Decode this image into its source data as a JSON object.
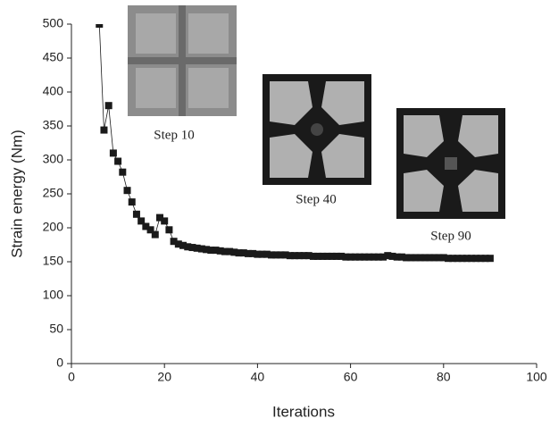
{
  "chart_data": {
    "type": "line",
    "xlabel": "Iterations",
    "ylabel": "Strain energy (Nm)",
    "x": [
      6,
      7,
      8,
      9,
      10,
      11,
      12,
      13,
      14,
      15,
      16,
      17,
      18,
      19,
      20,
      21,
      22,
      23,
      24,
      25,
      26,
      27,
      28,
      29,
      30,
      31,
      32,
      33,
      34,
      35,
      36,
      37,
      38,
      39,
      40,
      41,
      42,
      43,
      44,
      45,
      46,
      47,
      48,
      49,
      50,
      51,
      52,
      53,
      54,
      55,
      56,
      57,
      58,
      59,
      60,
      61,
      62,
      63,
      64,
      65,
      66,
      67,
      68,
      69,
      70,
      71,
      72,
      73,
      74,
      75,
      76,
      77,
      78,
      79,
      80,
      81,
      82,
      83,
      84,
      85,
      86,
      87,
      88,
      89,
      90
    ],
    "values": [
      500,
      344,
      380,
      310,
      298,
      282,
      255,
      238,
      220,
      210,
      202,
      197,
      190,
      215,
      210,
      197,
      180,
      176,
      174,
      172,
      171,
      170,
      169,
      168,
      167,
      167,
      166,
      165,
      165,
      164,
      163,
      163,
      162,
      162,
      161,
      161,
      161,
      160,
      160,
      160,
      160,
      159,
      159,
      159,
      159,
      159,
      158,
      158,
      158,
      158,
      158,
      158,
      158,
      157,
      157,
      157,
      157,
      157,
      157,
      157,
      157,
      157,
      159,
      158,
      157,
      157,
      156,
      156,
      156,
      156,
      156,
      156,
      156,
      156,
      156,
      155,
      155,
      155,
      155,
      155,
      155,
      155,
      155,
      155,
      155
    ],
    "color": "#1a1a1a",
    "xlim": [
      0,
      100
    ],
    "xticks": [
      0,
      20,
      40,
      60,
      80,
      100
    ],
    "ylim": [
      0,
      500
    ],
    "yticks": [
      0,
      50,
      100,
      150,
      200,
      250,
      300,
      350,
      400,
      450,
      500
    ],
    "annotations": [
      "Step 10",
      "Step 40",
      "Step 90"
    ]
  }
}
